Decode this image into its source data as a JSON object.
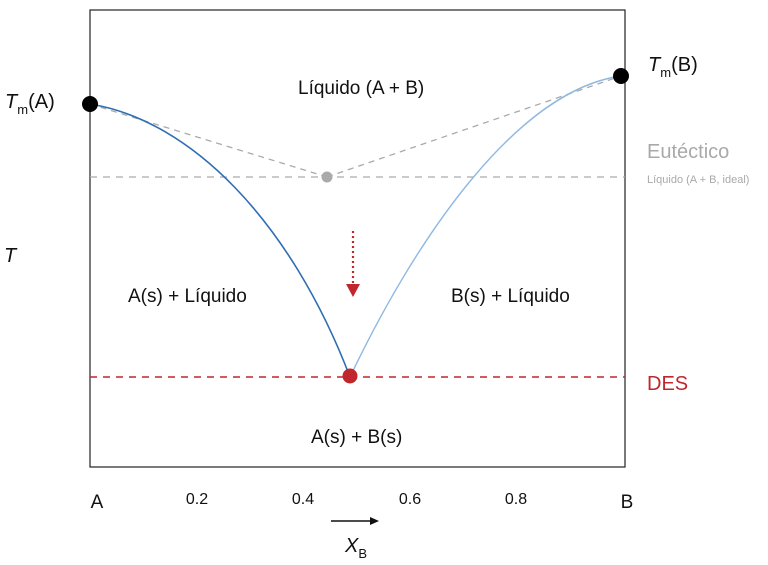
{
  "labels": {
    "tm_a_prefix": "T",
    "tm_a_sub": "m",
    "tm_a_suffix": "(A)",
    "tm_b_prefix": "T",
    "tm_b_sub": "m",
    "tm_b_suffix": "(B)",
    "t_axis": "T",
    "liquid_region": "Líquido (A + B)",
    "region_a_liquid": "A(s) + Líquido",
    "region_b_liquid": "B(s) + Líquido",
    "region_solid": "A(s) + B(s)",
    "eutectic": "Eutéctico",
    "eutectic_note": "Líquido (A + B, ideal)",
    "des": "DES",
    "x_axis_prefix": "X",
    "x_axis_sub": "B"
  },
  "x_ticks": [
    "A",
    "0.2",
    "0.4",
    "0.6",
    "0.8",
    "B"
  ],
  "colors": {
    "frame": "#222222",
    "liquidus_a": "#2f6db3",
    "liquidus_b": "#8fb8e3",
    "ideal_dashed": "#aaaaaa",
    "eutectic_point": "#aaaaaa",
    "des": "#c0272d",
    "eutectic_text": "#a9a9a9"
  }
}
